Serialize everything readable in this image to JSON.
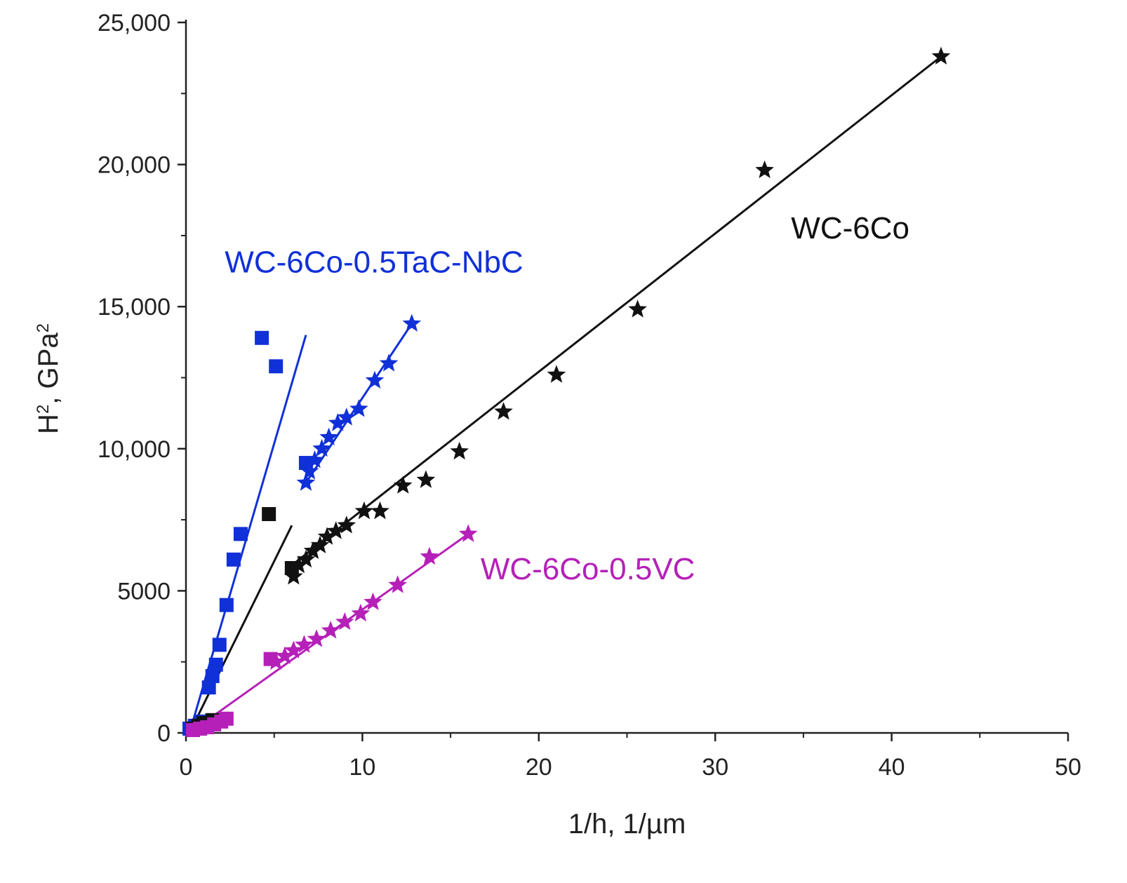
{
  "chart_data": {
    "type": "scatter",
    "title": "",
    "xlabel": "1/h, 1/µm",
    "ylabel": {
      "base": "H",
      "base_sup": "2",
      "unit": ", GPa",
      "unit_sup": "2"
    },
    "xlim": [
      0,
      50
    ],
    "ylim": [
      0,
      25000
    ],
    "x_ticks": [
      0,
      10,
      20,
      30,
      40,
      50
    ],
    "x_tick_labels": [
      "0",
      "10",
      "20",
      "30",
      "40",
      "50"
    ],
    "y_ticks": [
      0,
      5000,
      10000,
      15000,
      20000,
      25000
    ],
    "y_tick_labels": [
      "0",
      "5000",
      "10,000",
      "15,000",
      "20,000",
      "25,000"
    ],
    "grid": false,
    "series": [
      {
        "name": "WC-6Co-0.5TaC-NbC squares",
        "color": "#1030d8",
        "marker": "square",
        "points": [
          [
            0.2,
            150
          ],
          [
            0.5,
            250
          ],
          [
            0.9,
            400
          ],
          [
            1.3,
            1600
          ],
          [
            1.5,
            2000
          ],
          [
            1.7,
            2400
          ],
          [
            1.9,
            3100
          ],
          [
            2.3,
            4500
          ],
          [
            2.7,
            6100
          ],
          [
            3.1,
            7000
          ],
          [
            4.3,
            13900
          ],
          [
            5.1,
            12900
          ],
          [
            6.8,
            9500
          ]
        ]
      },
      {
        "name": "WC-6Co-0.5TaC-NbC stars",
        "color": "#1030d8",
        "marker": "star",
        "points": [
          [
            6.8,
            8800
          ],
          [
            7.0,
            9200
          ],
          [
            7.3,
            9600
          ],
          [
            7.7,
            10000
          ],
          [
            8.1,
            10400
          ],
          [
            8.6,
            10900
          ],
          [
            9.1,
            11100
          ],
          [
            9.8,
            11400
          ],
          [
            10.7,
            12400
          ],
          [
            11.5,
            13000
          ],
          [
            12.8,
            14400
          ]
        ]
      },
      {
        "name": "WC-6Co squares",
        "color": "#111111",
        "marker": "square",
        "points": [
          [
            0.4,
            150
          ],
          [
            0.7,
            250
          ],
          [
            1.0,
            350
          ],
          [
            1.5,
            450
          ],
          [
            4.7,
            7700
          ],
          [
            6.0,
            5800
          ]
        ]
      },
      {
        "name": "WC-6Co stars",
        "color": "#111111",
        "marker": "star",
        "points": [
          [
            6.1,
            5500
          ],
          [
            6.4,
            5900
          ],
          [
            6.8,
            6100
          ],
          [
            7.2,
            6400
          ],
          [
            7.6,
            6600
          ],
          [
            8.0,
            6900
          ],
          [
            8.5,
            7100
          ],
          [
            9.1,
            7300
          ],
          [
            10.1,
            7800
          ],
          [
            11.0,
            7800
          ],
          [
            12.3,
            8700
          ],
          [
            13.6,
            8900
          ],
          [
            15.5,
            9900
          ],
          [
            18.0,
            11300
          ],
          [
            21.0,
            12600
          ],
          [
            25.6,
            14900
          ],
          [
            32.8,
            19800
          ],
          [
            42.8,
            23800
          ]
        ]
      },
      {
        "name": "WC-6Co-0.5VC squares",
        "color": "#b520b8",
        "marker": "square",
        "points": [
          [
            0.4,
            100
          ],
          [
            0.8,
            150
          ],
          [
            1.2,
            200
          ],
          [
            1.6,
            300
          ],
          [
            2.0,
            400
          ],
          [
            2.3,
            500
          ],
          [
            4.8,
            2600
          ]
        ]
      },
      {
        "name": "WC-6Co-0.5VC stars",
        "color": "#b520b8",
        "marker": "star",
        "points": [
          [
            5.1,
            2500
          ],
          [
            5.6,
            2700
          ],
          [
            6.1,
            2900
          ],
          [
            6.7,
            3100
          ],
          [
            7.4,
            3300
          ],
          [
            8.2,
            3600
          ],
          [
            9.0,
            3900
          ],
          [
            9.9,
            4200
          ],
          [
            10.6,
            4600
          ],
          [
            12.0,
            5200
          ],
          [
            13.8,
            6200
          ],
          [
            16.0,
            7000
          ]
        ]
      }
    ],
    "fit_lines": [
      {
        "name": "WC-6Co-0.5TaC-NbC fit (low)",
        "color": "#1030d8",
        "from": [
          0.2,
          0
        ],
        "to": [
          6.8,
          14000
        ]
      },
      {
        "name": "WC-6Co-0.5TaC-NbC fit (high)",
        "color": "#1030d8",
        "from": [
          6.8,
          8800
        ],
        "to": [
          12.8,
          14400
        ]
      },
      {
        "name": "WC-6Co fit (low)",
        "color": "#111111",
        "from": [
          0.2,
          0
        ],
        "to": [
          6.0,
          7300
        ]
      },
      {
        "name": "WC-6Co fit (high)",
        "color": "#111111",
        "from": [
          6.0,
          5900
        ],
        "to": [
          42.8,
          23800
        ]
      },
      {
        "name": "WC-6Co-0.5VC fit",
        "color": "#b520b8",
        "from": [
          0.2,
          0
        ],
        "to": [
          16.0,
          7000
        ]
      }
    ],
    "annotations": [
      {
        "text": "WC-6Co-0.5TaC-NbC",
        "color": "#1030d8",
        "x": 2.2,
        "y": 16200
      },
      {
        "text": "WC-6Co",
        "color": "#111111",
        "x": 34.3,
        "y": 17400
      },
      {
        "text": "WC-6Co-0.5VC",
        "color": "#b520b8",
        "x": 16.7,
        "y": 5400
      }
    ]
  }
}
